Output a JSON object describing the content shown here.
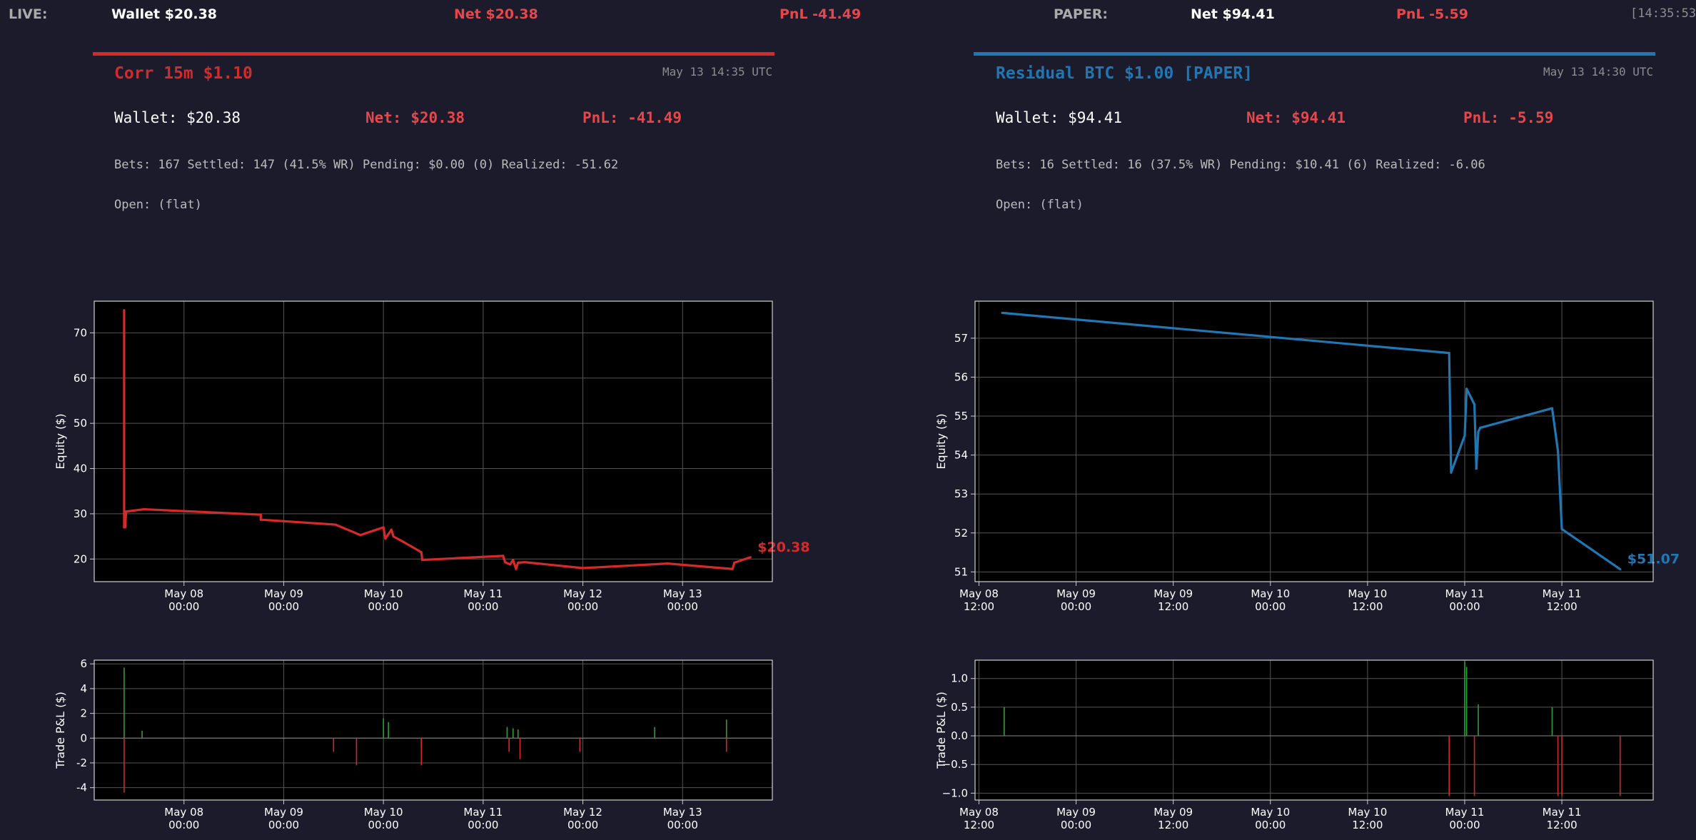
{
  "topbar": {
    "live_label": "LIVE:",
    "live_wallet": "Wallet $20.38",
    "live_net": "Net $20.38",
    "live_pnl": "PnL -41.49",
    "paper_label": "PAPER:",
    "paper_net": "Net $94.41",
    "paper_pnl": "PnL -5.59",
    "clock": "[14:35:53]"
  },
  "colors": {
    "live": "#d62a2a",
    "paper": "#1f77b4",
    "negative": "#e8464a",
    "profit_bar": "#2ca02c",
    "loss_bar": "#d62728",
    "background": "#1b1b2c",
    "plot_bg": "#000000"
  },
  "panels": [
    {
      "title": "Corr 15m $1.10",
      "date": "May 13 14:35 UTC",
      "wallet": "Wallet: $20.38",
      "net": "Net: $20.38",
      "pnl": "PnL: -41.49",
      "stats": "Bets: 167   Settled: 147 (41.5% WR)   Pending: $0.00 (0)   Realized: -51.62",
      "open": "Open: (flat)"
    },
    {
      "title": "Residual BTC $1.00 [PAPER]",
      "date": "May 13 14:30 UTC",
      "wallet": "Wallet: $94.41",
      "net": "Net: $94.41",
      "pnl": "PnL: -5.59",
      "stats": "Bets: 16   Settled: 16 (37.5% WR)   Pending: $10.41 (6)   Realized: -6.06",
      "open": "Open: (flat)"
    }
  ],
  "chart_data": [
    {
      "type": "line",
      "ylabel": "Equity ($)",
      "ylim": [
        15,
        77
      ],
      "yticks": [
        20,
        30,
        40,
        50,
        60,
        70
      ],
      "xlim": [
        0,
        6.8
      ],
      "xticks": [
        0.9,
        1.9,
        2.9,
        3.9,
        4.9,
        5.9
      ],
      "xticklabels": [
        [
          "May 08",
          "00:00"
        ],
        [
          "May 09",
          "00:00"
        ],
        [
          "May 10",
          "00:00"
        ],
        [
          "May 11",
          "00:00"
        ],
        [
          "May 12",
          "00:00"
        ],
        [
          "May 13",
          "00:00"
        ]
      ],
      "grid": true,
      "end_label": "$20.38",
      "x": [
        0.3,
        0.3,
        0.31,
        0.31,
        0.32,
        0.5,
        1.67,
        1.67,
        2.42,
        2.67,
        2.9,
        2.92,
        2.98,
        3.0,
        3.1,
        3.28,
        3.29,
        4.1,
        4.12,
        4.17,
        4.2,
        4.23,
        4.25,
        4.32,
        4.9,
        5.75,
        6.4,
        6.42,
        6.58
      ],
      "y": [
        75,
        27,
        30.5,
        27,
        30.5,
        31,
        29.8,
        28.7,
        27.6,
        25.3,
        27,
        24.5,
        26.5,
        25,
        23.8,
        21.5,
        19.8,
        20.7,
        19.3,
        18.8,
        19.8,
        17.8,
        19.2,
        19.3,
        18,
        19,
        17.8,
        19.2,
        20.38
      ]
    },
    {
      "type": "bar",
      "ylabel": "Trade P&L ($)",
      "ylim": [
        -5,
        6.3
      ],
      "yticks": [
        -4,
        -2,
        0,
        2,
        4,
        6
      ],
      "xlim": [
        0,
        6.8
      ],
      "xticks": [
        0.9,
        1.9,
        2.9,
        3.9,
        4.9,
        5.9
      ],
      "xticklabels": [
        [
          "May 08",
          "00:00"
        ],
        [
          "May 09",
          "00:00"
        ],
        [
          "May 10",
          "00:00"
        ],
        [
          "May 11",
          "00:00"
        ],
        [
          "May 12",
          "00:00"
        ],
        [
          "May 13",
          "00:00"
        ]
      ],
      "grid": true,
      "x": [
        0.3,
        0.3,
        0.48,
        2.4,
        2.63,
        2.9,
        2.95,
        3.28,
        3.28,
        4.14,
        4.16,
        4.2,
        4.25,
        4.27,
        4.87,
        5.62,
        6.34,
        6.34
      ],
      "values": [
        5.7,
        -4.4,
        0.6,
        -1.1,
        -2.2,
        1.6,
        1.3,
        -2.2,
        -0.8,
        0.9,
        -1.1,
        0.8,
        0.7,
        -1.7,
        -1.1,
        0.9,
        1.5,
        -1.1
      ]
    },
    {
      "type": "line",
      "ylabel": "Equity ($)",
      "ylim": [
        50.75,
        57.95
      ],
      "yticks": [
        51,
        52,
        53,
        54,
        55,
        56,
        57
      ],
      "xlim": [
        -0.02,
        3.47
      ],
      "xticks": [
        0,
        0.5,
        1,
        1.5,
        2,
        2.5,
        3
      ],
      "xticklabels": [
        [
          "May 08",
          "12:00"
        ],
        [
          "May 09",
          "00:00"
        ],
        [
          "May 09",
          "12:00"
        ],
        [
          "May 10",
          "00:00"
        ],
        [
          "May 10",
          "12:00"
        ],
        [
          "May 11",
          "00:00"
        ],
        [
          "May 11",
          "12:00"
        ]
      ],
      "grid": true,
      "end_label": "$51.07",
      "x": [
        0.12,
        2.42,
        2.43,
        2.5,
        2.51,
        2.55,
        2.56,
        2.57,
        2.58,
        2.95,
        2.98,
        2.99,
        3.0,
        3.3
      ],
      "y": [
        57.65,
        56.62,
        53.55,
        54.5,
        55.7,
        55.3,
        53.65,
        54.6,
        54.7,
        55.2,
        54.1,
        53.1,
        52.1,
        51.07
      ]
    },
    {
      "type": "bar",
      "ylabel": "Trade P&L ($)",
      "ylim": [
        -1.12,
        1.32
      ],
      "yticks": [
        -1.0,
        -0.5,
        0.0,
        0.5,
        1.0
      ],
      "yticklabels": [
        "−1.0",
        "−0.5",
        "0.0",
        "0.5",
        "1.0"
      ],
      "xlim": [
        -0.02,
        3.47
      ],
      "xticks": [
        0,
        0.5,
        1,
        1.5,
        2,
        2.5,
        3
      ],
      "xticklabels": [
        [
          "May 08",
          "12:00"
        ],
        [
          "May 09",
          "00:00"
        ],
        [
          "May 09",
          "12:00"
        ],
        [
          "May 10",
          "00:00"
        ],
        [
          "May 10",
          "12:00"
        ],
        [
          "May 11",
          "00:00"
        ],
        [
          "May 11",
          "12:00"
        ]
      ],
      "grid": true,
      "x": [
        0.13,
        2.42,
        2.5,
        2.51,
        2.55,
        2.57,
        2.95,
        2.98,
        3.0,
        3.3
      ],
      "values": [
        0.5,
        -1.05,
        1.3,
        1.2,
        -1.05,
        0.55,
        0.5,
        -1.05,
        -1.05,
        -1.05
      ]
    }
  ]
}
